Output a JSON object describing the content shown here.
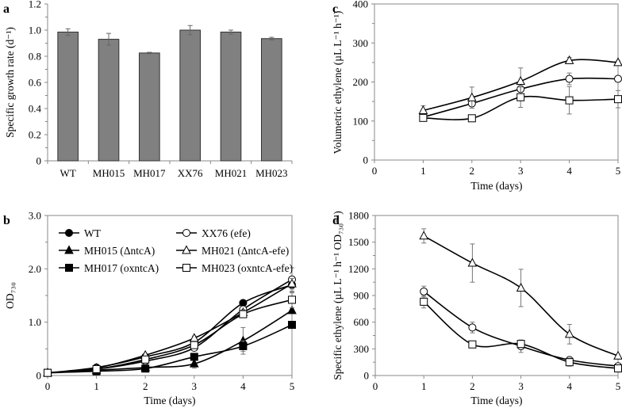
{
  "chart_data": [
    {
      "panel": "a",
      "type": "bar",
      "categories": [
        "WT",
        "MH015",
        "MH017",
        "XX76",
        "MH021",
        "MH023"
      ],
      "values": [
        0.985,
        0.93,
        0.825,
        1.0,
        0.985,
        0.935
      ],
      "errors": [
        0.025,
        0.045,
        0.005,
        0.035,
        0.015,
        0.01
      ],
      "ylabel": "Specific growth rate (d⁻¹)",
      "xlabel": "",
      "ylim": [
        0,
        1.2
      ],
      "yticks": [
        0,
        0.2,
        0.4,
        0.6,
        0.8,
        1.0,
        1.2
      ],
      "ytick_labels": [
        "0",
        "0.2",
        "0.4",
        "0.6",
        "0.8",
        "1.0",
        "1.2"
      ],
      "bar_color": "#808080",
      "grid": false
    },
    {
      "panel": "b",
      "type": "line",
      "x": [
        0,
        1,
        2,
        3,
        4,
        5
      ],
      "xlabel": "Time (days)",
      "ylabel": "OD₇₃₀",
      "xlim": [
        0,
        5
      ],
      "ylim": [
        0,
        3.0
      ],
      "xticks": [
        0,
        1,
        2,
        3,
        4,
        5
      ],
      "xtick_labels": [
        "0",
        "1",
        "2",
        "3",
        "4",
        "5"
      ],
      "yticks": [
        0,
        1.0,
        2.0,
        3.0
      ],
      "ytick_labels": [
        "0",
        "1.0",
        "2.0",
        "3.0"
      ],
      "legend_position": "top-left",
      "grid": false,
      "series": [
        {
          "name": "WT",
          "marker": "circle-filled",
          "values": [
            0.05,
            0.15,
            0.35,
            0.62,
            1.36,
            1.7
          ],
          "errors": [
            0,
            0.02,
            0.03,
            0.05,
            0.05,
            0.15
          ]
        },
        {
          "name": "MH015 (ΔntcA)",
          "marker": "triangle-filled",
          "values": [
            0.05,
            0.1,
            0.15,
            0.22,
            0.65,
            1.22
          ],
          "errors": [
            0,
            0.01,
            0.02,
            0.08,
            0.25,
            0.05
          ]
        },
        {
          "name": "MH017 (oxntcA)",
          "marker": "square-filled",
          "values": [
            0.05,
            0.08,
            0.13,
            0.35,
            0.55,
            0.95
          ],
          "errors": [
            0,
            0.01,
            0.02,
            0.04,
            0.1,
            0.05
          ]
        },
        {
          "name": "XX76 (efe)",
          "marker": "circle-open",
          "values": [
            0.05,
            0.12,
            0.27,
            0.52,
            1.24,
            1.8
          ],
          "errors": [
            0,
            0.02,
            0.04,
            0.05,
            0.06,
            0.22
          ]
        },
        {
          "name": "MH021 (ΔntcA-efe)",
          "marker": "triangle-open",
          "values": [
            0.05,
            0.14,
            0.38,
            0.7,
            1.18,
            1.72
          ],
          "errors": [
            0,
            0.02,
            0.03,
            0.04,
            0.05,
            0.1
          ]
        },
        {
          "name": "MH023 (oxntcA-efe)",
          "marker": "square-open",
          "values": [
            0.05,
            0.12,
            0.3,
            0.57,
            1.15,
            1.42
          ],
          "errors": [
            0,
            0.02,
            0.03,
            0.05,
            0.06,
            0.15
          ]
        }
      ]
    },
    {
      "panel": "c",
      "type": "line",
      "x": [
        1,
        2,
        3,
        4,
        5
      ],
      "xlabel": "Time (days)",
      "ylabel": "Volumetric ethylene (µL L⁻¹ h⁻¹)",
      "xlim": [
        0,
        5
      ],
      "ylim": [
        0,
        400
      ],
      "xticks": [
        0,
        1,
        2,
        3,
        4,
        5
      ],
      "xtick_labels": [
        "0",
        "1",
        "2",
        "3",
        "4",
        "5"
      ],
      "yticks": [
        0,
        100,
        200,
        300,
        400
      ],
      "ytick_labels": [
        "0",
        "100",
        "200",
        "300",
        "400"
      ],
      "grid": false,
      "series": [
        {
          "name": "XX76 (efe)",
          "marker": "circle-open",
          "values": [
            110,
            145,
            182,
            208,
            208
          ],
          "errors": [
            10,
            12,
            8,
            15,
            5
          ]
        },
        {
          "name": "MH021 (ΔntcA-efe)",
          "marker": "triangle-open",
          "values": [
            127,
            160,
            202,
            255,
            250
          ],
          "errors": [
            12,
            27,
            34,
            8,
            4
          ]
        },
        {
          "name": "MH023 (oxntcA-efe)",
          "marker": "square-open",
          "values": [
            108,
            107,
            161,
            153,
            156
          ],
          "errors": [
            8,
            5,
            26,
            35,
            22
          ]
        }
      ]
    },
    {
      "panel": "d",
      "type": "line",
      "x": [
        1,
        2,
        3,
        4,
        5
      ],
      "xlabel": "Time (days)",
      "ylabel": "Specific ethylene (µL L⁻¹ h⁻¹ OD₇₃₀⁻¹)",
      "xlim": [
        0,
        5
      ],
      "ylim": [
        0,
        1800
      ],
      "xticks": [
        0,
        1,
        2,
        3,
        4,
        5
      ],
      "xtick_labels": [
        "0",
        "1",
        "2",
        "3",
        "4",
        "5"
      ],
      "yticks": [
        0,
        300,
        600,
        900,
        1200,
        1500,
        1800
      ],
      "ytick_labels": [
        "0",
        "300",
        "600",
        "900",
        "1200",
        "1500",
        "1800"
      ],
      "grid": false,
      "series": [
        {
          "name": "XX76 (efe)",
          "marker": "circle-open",
          "values": [
            945,
            540,
            330,
            175,
            105
          ],
          "errors": [
            60,
            60,
            70,
            20,
            10
          ]
        },
        {
          "name": "MH021 (ΔntcA-efe)",
          "marker": "triangle-open",
          "values": [
            1570,
            1265,
            985,
            465,
            220
          ],
          "errors": [
            80,
            215,
            210,
            110,
            10
          ]
        },
        {
          "name": "MH023 (oxntcA-efe)",
          "marker": "square-open",
          "values": [
            830,
            350,
            355,
            150,
            80
          ],
          "errors": [
            70,
            10,
            40,
            45,
            10
          ]
        }
      ]
    }
  ],
  "panel_labels": [
    "a",
    "b",
    "c",
    "d"
  ]
}
